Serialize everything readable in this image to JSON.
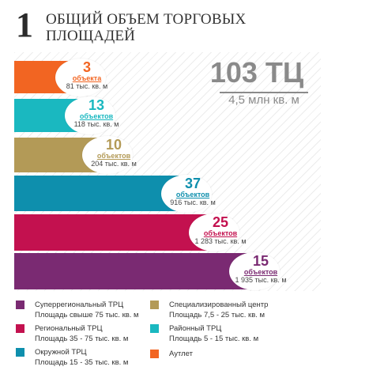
{
  "page": {
    "number": "1",
    "title_line1": "ОБЩИЙ ОБЪЕМ ТОРГОВЫХ",
    "title_line2": "ПЛОЩАДЕЙ",
    "total_count": "103 ТЦ",
    "total_area": "4,5 млн кв. м"
  },
  "chart_data": {
    "type": "bar",
    "orientation": "horizontal",
    "title": "ОБЩИЙ ОБЪЕМ ТОРГОВЫХ ПЛОЩАДЕЙ",
    "categories": [
      "Аутлет",
      "Районный ТРЦ",
      "Специализированный центр",
      "Окружной ТРЦ",
      "Региональный ТРЦ",
      "Суперрегиональный ТРЦ"
    ],
    "values": [
      3,
      13,
      10,
      37,
      25,
      15
    ],
    "area_values": [
      81,
      118,
      204,
      916,
      1283,
      1935
    ],
    "area_unit": "тыс. кв. м",
    "count_words": [
      "объекта",
      "объектов",
      "объектов",
      "объектов",
      "объектов",
      "объектов"
    ],
    "area_labels": [
      "81 тыс. кв. м",
      "118 тыс. кв. м",
      "204 тыс. кв. м",
      "916 тыс. кв. м",
      "1 283 тыс. кв. м",
      "1 935 тыс. кв. м"
    ],
    "colors": [
      "#f26522",
      "#1ab8c0",
      "#b39a57",
      "#0e8fad",
      "#c3114f",
      "#7a2a72"
    ],
    "bar_length_proportional_to": "area"
  },
  "legend": [
    {
      "name": "Суперрегиональный ТРЦ",
      "desc": "Площадь свыше 75 тыс. кв. м",
      "color": "#7a2a72"
    },
    {
      "name": "Специализированный центр",
      "desc": "Площадь 7,5 - 25 тыс. кв. м",
      "color": "#b39a57"
    },
    {
      "name": "Региональный ТРЦ",
      "desc": "Площадь 35 - 75 тыс. кв. м",
      "color": "#c3114f"
    },
    {
      "name": "Районный ТРЦ",
      "desc": "Площадь 5 - 15 тыс. кв. м",
      "color": "#1ab8c0"
    },
    {
      "name": "Окружной ТРЦ",
      "desc": "Площадь 15 - 35 тыс. кв. м",
      "color": "#0e8fad"
    },
    {
      "name": "Аутлет",
      "desc": "",
      "color": "#f26522"
    }
  ]
}
